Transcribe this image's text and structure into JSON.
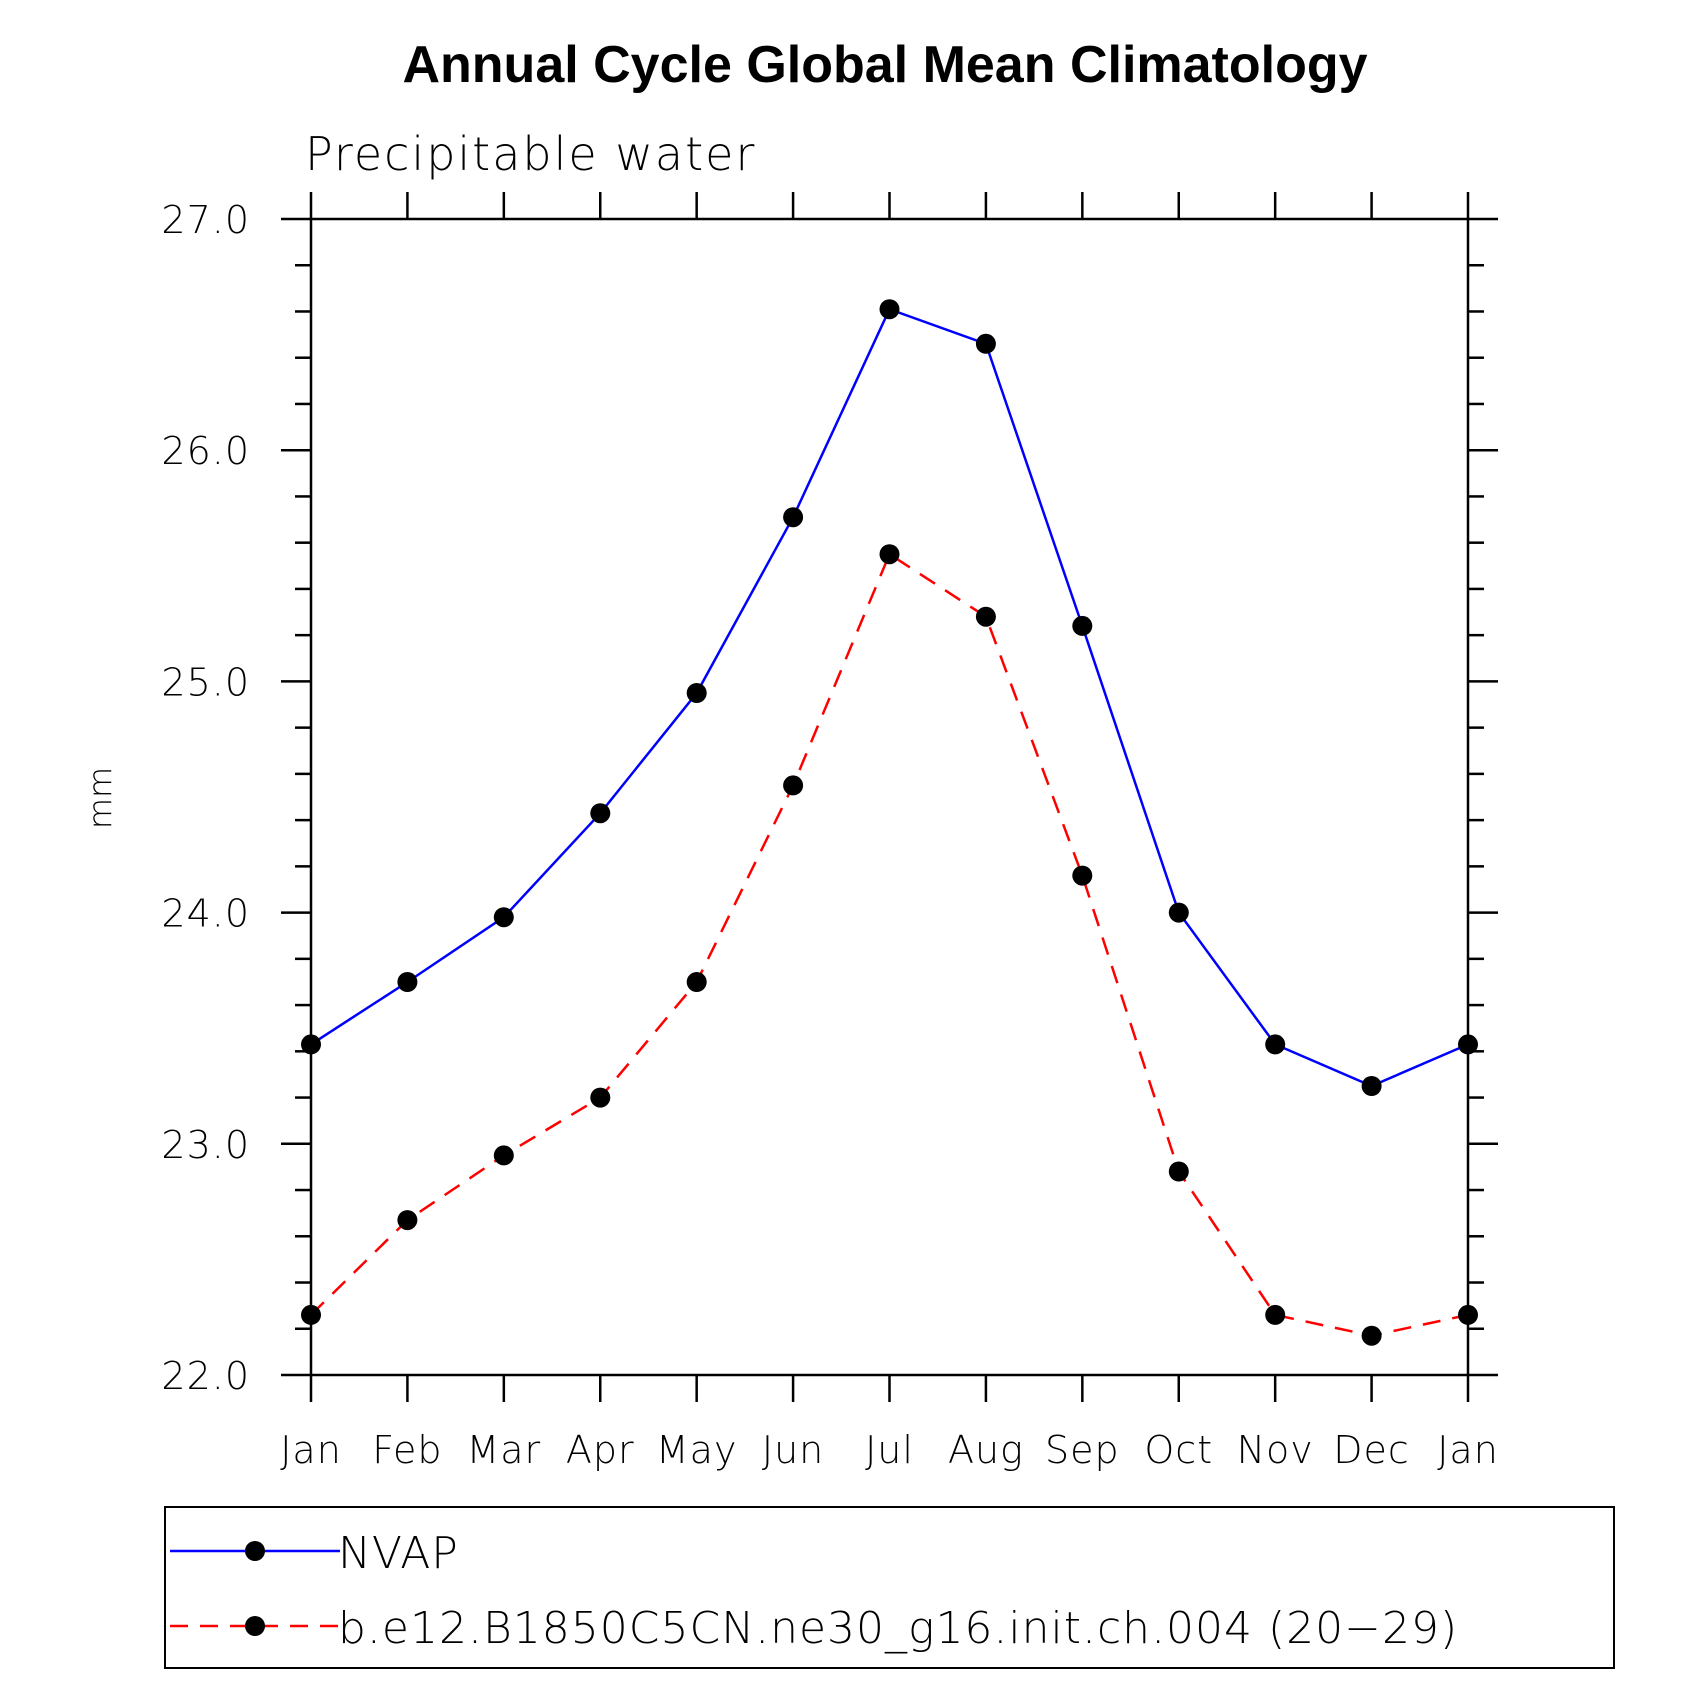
{
  "chart_data": {
    "type": "line",
    "title": "Annual Cycle Global Mean Climatology",
    "subtitle": "Precipitable water",
    "xlabel": "",
    "ylabel": "mm",
    "categories": [
      "Jan",
      "Feb",
      "Mar",
      "Apr",
      "May",
      "Jun",
      "Jul",
      "Aug",
      "Sep",
      "Oct",
      "Nov",
      "Dec",
      "Jan"
    ],
    "ylim": [
      22.0,
      27.0
    ],
    "yticks": [
      "22.0",
      "23.0",
      "24.0",
      "25.0",
      "26.0",
      "27.0"
    ],
    "grid": false,
    "legend_position": "bottom",
    "series": [
      {
        "name": "NVAP",
        "color": "#0000ff",
        "dash": "solid",
        "values": [
          23.43,
          23.7,
          23.98,
          24.43,
          24.95,
          25.71,
          26.61,
          26.46,
          25.24,
          24.0,
          23.43,
          23.25,
          23.43
        ]
      },
      {
        "name": "b.e12.B1850C5CN.ne30_g16.init.ch.004 (20−29)",
        "color": "#ff0000",
        "dash": "dashed",
        "values": [
          22.26,
          22.67,
          22.95,
          23.2,
          23.7,
          24.55,
          25.55,
          25.28,
          24.16,
          22.88,
          22.26,
          22.17,
          22.26
        ]
      }
    ]
  }
}
